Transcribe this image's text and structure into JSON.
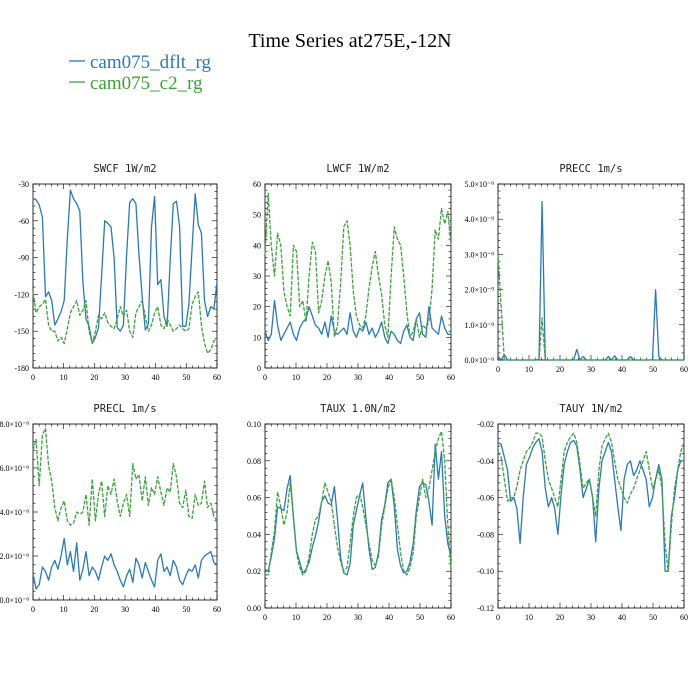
{
  "title": "Time Series at275E,-12N",
  "legend": [
    {
      "label": "cam075_dflt_rg",
      "color": "#2a7ab8"
    },
    {
      "label": "cam075_c2_rg",
      "color": "#3aa33a"
    }
  ],
  "chart_data": [
    {
      "type": "line",
      "title": "SWCF   1W/m2",
      "xlim": [
        0,
        60
      ],
      "ylim": [
        -180,
        -30
      ],
      "xticks": [
        0,
        10,
        20,
        30,
        40,
        50,
        60
      ],
      "yticks": [
        -180,
        -150,
        -120,
        -90,
        -60,
        -30
      ],
      "yticklabels": [
        "-180",
        "-150",
        "-120",
        "-90",
        "-60",
        "-30"
      ],
      "series": [
        {
          "color": "#2a7ab8",
          "values": [
            -42,
            -43,
            -47,
            -57,
            -122,
            -118,
            -125,
            -145,
            -140,
            -134,
            -125,
            -75,
            -35,
            -42,
            -46,
            -52,
            -110,
            -140,
            -146,
            -160,
            -155,
            -147,
            -105,
            -60,
            -62,
            -65,
            -90,
            -147,
            -150,
            -145,
            -88,
            -45,
            -42,
            -46,
            -88,
            -122,
            -149,
            -144,
            -65,
            -40,
            -112,
            -108,
            -138,
            -146,
            -92,
            -46,
            -44,
            -65,
            -146,
            -146,
            -128,
            -82,
            -38,
            -63,
            -70,
            -125,
            -138,
            -130,
            -132,
            -110
          ]
        },
        {
          "color": "#3aa33a",
          "values": [
            -118,
            -135,
            -130,
            -128,
            -124,
            -145,
            -150,
            -150,
            -158,
            -155,
            -160,
            -148,
            -135,
            -130,
            -125,
            -137,
            -133,
            -125,
            -150,
            -160,
            -150,
            -137,
            -140,
            -135,
            -143,
            -146,
            -148,
            -140,
            -130,
            -138,
            -133,
            -150,
            -155,
            -135,
            -130,
            -125,
            -138,
            -150,
            -145,
            -135,
            -130,
            -145,
            -148,
            -140,
            -145,
            -150,
            -148,
            -145,
            -148,
            -150,
            -148,
            -128,
            -122,
            -118,
            -145,
            -160,
            -168,
            -165,
            -158,
            -156
          ]
        }
      ]
    },
    {
      "type": "line",
      "title": "LWCF   1W/m2",
      "xlim": [
        0,
        60
      ],
      "ylim": [
        0,
        60
      ],
      "xticks": [
        0,
        10,
        20,
        30,
        40,
        50,
        60
      ],
      "yticks": [
        0,
        10,
        20,
        30,
        40,
        50,
        60
      ],
      "yticklabels": [
        "0",
        "10",
        "20",
        "30",
        "40",
        "50",
        "60"
      ],
      "series": [
        {
          "color": "#2a7ab8",
          "values": [
            12,
            9,
            11,
            22,
            14,
            9,
            11,
            13,
            15,
            11,
            9,
            13,
            15,
            16,
            20,
            17,
            14,
            13,
            11,
            15,
            10,
            17,
            12,
            11,
            12,
            13,
            11,
            18,
            12,
            10,
            13,
            12,
            15,
            11,
            13,
            10,
            12,
            15,
            10,
            8,
            12,
            11,
            9,
            8,
            12,
            14,
            10,
            9,
            16,
            18,
            11,
            10,
            20,
            13,
            12,
            11,
            17,
            13,
            11,
            11
          ]
        },
        {
          "color": "#3aa33a",
          "values": [
            37,
            57,
            40,
            30,
            44,
            40,
            25,
            20,
            17,
            40,
            38,
            20,
            22,
            15,
            30,
            41,
            38,
            18,
            22,
            30,
            35,
            28,
            10,
            14,
            28,
            46,
            48,
            40,
            25,
            17,
            14,
            13,
            17,
            26,
            33,
            38,
            30,
            24,
            14,
            10,
            30,
            46,
            42,
            40,
            30,
            18,
            10,
            12,
            16,
            10,
            14,
            13,
            15,
            26,
            45,
            42,
            52,
            47,
            51,
            40
          ]
        }
      ]
    },
    {
      "type": "line",
      "title": "PRECC   1m/s",
      "xlim": [
        0,
        60
      ],
      "ylim": [
        0,
        5e-09
      ],
      "xticks": [
        0,
        10,
        20,
        30,
        40,
        50,
        60
      ],
      "yticks": [
        0,
        1e-09,
        2e-09,
        3e-09,
        4e-09,
        5e-09
      ],
      "yticklabels": [
        "0.0×10⁻⁹",
        "1.0×10⁻⁹",
        "2.0×10⁻⁹",
        "3.0×10⁻⁹",
        "4.0×10⁻⁹",
        "5.0×10⁻⁹"
      ],
      "series": [
        {
          "color": "#2a7ab8",
          "values": [
            1e-10,
            0,
            1.5e-10,
            0,
            0,
            0,
            0,
            0,
            0,
            0,
            0,
            0,
            0,
            2e-11,
            4.5e-09,
            0,
            0,
            0,
            0,
            0,
            0,
            0,
            0,
            0,
            1e-11,
            3e-10,
            0,
            1e-10,
            0,
            0,
            0,
            0,
            0,
            0,
            0,
            1e-10,
            0,
            1.2e-10,
            0,
            0,
            0,
            0,
            1e-10,
            0,
            0,
            0,
            0,
            0,
            0,
            1e-11,
            2e-09,
            1e-10,
            0,
            0,
            0,
            0,
            0,
            0,
            0,
            0
          ]
        },
        {
          "color": "#3aa33a",
          "values": [
            3e-09,
            1.5e-09,
            0,
            0,
            0,
            0,
            0,
            0,
            0,
            0,
            0,
            0,
            0,
            0,
            1.2e-09,
            0,
            0,
            0,
            0,
            0,
            0,
            0,
            0,
            0,
            0,
            0,
            0,
            0,
            0,
            0,
            0,
            0,
            0,
            0,
            0,
            0,
            0,
            0,
            0,
            0,
            0,
            0,
            0,
            0,
            0,
            0,
            0,
            0,
            0,
            0,
            0,
            0,
            0,
            0,
            0,
            0,
            0,
            0,
            0,
            0
          ]
        }
      ]
    },
    {
      "type": "line",
      "title": "PRECL   1m/s",
      "xlim": [
        0,
        60
      ],
      "ylim": [
        0,
        8e-09
      ],
      "xticks": [
        0,
        10,
        20,
        30,
        40,
        50,
        60
      ],
      "yticks": [
        0,
        2e-09,
        4e-09,
        6e-09,
        8e-09
      ],
      "yticklabels": [
        "0.0×10⁻⁹",
        "2.0×10⁻⁹",
        "4.0×10⁻⁹",
        "6.0×10⁻⁹",
        "8.0×10⁻⁹"
      ],
      "series": [
        {
          "color": "#2a7ab8",
          "values": [
            1.2e-09,
            5e-10,
            7e-10,
            1.5e-09,
            1.3e-09,
            9e-10,
            1.5e-09,
            1.8e-09,
            1.4e-09,
            2e-09,
            2.8e-09,
            1.6e-09,
            2.2e-09,
            1.3e-09,
            2.6e-09,
            9e-10,
            1.4e-09,
            2.2e-09,
            1.1e-09,
            1.5e-09,
            1.3e-09,
            9e-10,
            1.5e-09,
            2e-09,
            1.8e-09,
            2.1e-09,
            1.6e-09,
            1.3e-09,
            9e-10,
            6e-10,
            1.1e-09,
            1.4e-09,
            8e-10,
            1.9e-09,
            1.6e-09,
            1e-09,
            1.7e-09,
            1.3e-09,
            9e-10,
            6e-10,
            1.8e-09,
            2.1e-09,
            1.3e-09,
            1.5e-09,
            1.1e-09,
            1.8e-09,
            1.5e-09,
            9e-10,
            7e-10,
            1.1e-09,
            1.4e-09,
            1.3e-09,
            1.6e-09,
            1e-09,
            1.8e-09,
            2e-09,
            2.1e-09,
            2.2e-09,
            1.7e-09,
            1.6e-09
          ]
        },
        {
          "color": "#3aa33a",
          "values": [
            6.8e-09,
            7.3e-09,
            5.2e-09,
            7.5e-09,
            7.8e-09,
            6.1e-09,
            5.4e-09,
            4.2e-09,
            3.6e-09,
            4.2e-09,
            4.5e-09,
            3.6e-09,
            3.4e-09,
            3.5e-09,
            4e-09,
            3.9e-09,
            4e-09,
            4.8e-09,
            3.4e-09,
            5.5e-09,
            3.6e-09,
            4.8e-09,
            5.4e-09,
            3.8e-09,
            5.2e-09,
            4.8e-09,
            5.5e-09,
            4.5e-09,
            3.8e-09,
            4.4e-09,
            4.8e-09,
            3.8e-09,
            6.2e-09,
            5.5e-09,
            5.7e-09,
            4.5e-09,
            5.6e-09,
            4.3e-09,
            5.1e-09,
            4.8e-09,
            5.6e-09,
            4.9e-09,
            4.3e-09,
            5.1e-09,
            4.9e-09,
            6.2e-09,
            5.6e-09,
            4.4e-09,
            4.2e-09,
            5e-09,
            3.8e-09,
            3.7e-09,
            4.8e-09,
            4.3e-09,
            4.4e-09,
            5.4e-09,
            4.2e-09,
            4.4e-09,
            3.8e-09,
            3.6e-09
          ]
        }
      ]
    },
    {
      "type": "line",
      "title": "TAUX   1.0N/m2",
      "xlim": [
        0,
        60
      ],
      "ylim": [
        0,
        0.1
      ],
      "xticks": [
        0,
        10,
        20,
        30,
        40,
        50,
        60
      ],
      "yticks": [
        0,
        0.02,
        0.04,
        0.06,
        0.08,
        0.1
      ],
      "yticklabels": [
        "0.00",
        "0.02",
        "0.04",
        "0.06",
        "0.08",
        "0.10"
      ],
      "series": [
        {
          "color": "#2a7ab8",
          "values": [
            0.021,
            0.02,
            0.028,
            0.038,
            0.055,
            0.054,
            0.053,
            0.065,
            0.072,
            0.049,
            0.031,
            0.025,
            0.019,
            0.021,
            0.025,
            0.033,
            0.039,
            0.047,
            0.058,
            0.061,
            0.057,
            0.056,
            0.066,
            0.048,
            0.027,
            0.019,
            0.018,
            0.024,
            0.045,
            0.053,
            0.061,
            0.068,
            0.049,
            0.032,
            0.021,
            0.022,
            0.03,
            0.048,
            0.056,
            0.068,
            0.07,
            0.055,
            0.032,
            0.023,
            0.019,
            0.02,
            0.025,
            0.035,
            0.053,
            0.066,
            0.068,
            0.067,
            0.058,
            0.045,
            0.089,
            0.07,
            0.085,
            0.05,
            0.035,
            0.028
          ]
        },
        {
          "color": "#3aa33a",
          "values": [
            0.018,
            0.018,
            0.03,
            0.042,
            0.063,
            0.055,
            0.045,
            0.052,
            0.068,
            0.05,
            0.03,
            0.022,
            0.018,
            0.02,
            0.028,
            0.04,
            0.048,
            0.05,
            0.058,
            0.068,
            0.063,
            0.058,
            0.045,
            0.033,
            0.025,
            0.02,
            0.022,
            0.035,
            0.05,
            0.06,
            0.062,
            0.055,
            0.045,
            0.035,
            0.026,
            0.023,
            0.028,
            0.045,
            0.055,
            0.065,
            0.07,
            0.06,
            0.045,
            0.03,
            0.02,
            0.018,
            0.022,
            0.03,
            0.05,
            0.06,
            0.07,
            0.06,
            0.065,
            0.075,
            0.085,
            0.092,
            0.096,
            0.08,
            0.045,
            0.021
          ]
        }
      ]
    },
    {
      "type": "line",
      "title": "TAUY   1N/m2",
      "xlim": [
        0,
        60
      ],
      "ylim": [
        -0.12,
        -0.02
      ],
      "xticks": [
        0,
        10,
        20,
        30,
        40,
        50,
        60
      ],
      "yticks": [
        -0.12,
        -0.1,
        -0.08,
        -0.06,
        -0.04,
        -0.02
      ],
      "yticklabels": [
        "-0.12",
        "-0.10",
        "-0.08",
        "-0.06",
        "-0.04",
        "-0.02"
      ],
      "series": [
        {
          "color": "#2a7ab8",
          "values": [
            -0.03,
            -0.031,
            -0.038,
            -0.045,
            -0.062,
            -0.06,
            -0.066,
            -0.085,
            -0.06,
            -0.042,
            -0.038,
            -0.033,
            -0.03,
            -0.028,
            -0.035,
            -0.055,
            -0.065,
            -0.06,
            -0.066,
            -0.08,
            -0.058,
            -0.042,
            -0.035,
            -0.03,
            -0.029,
            -0.032,
            -0.045,
            -0.06,
            -0.055,
            -0.05,
            -0.06,
            -0.084,
            -0.055,
            -0.04,
            -0.035,
            -0.03,
            -0.035,
            -0.05,
            -0.065,
            -0.078,
            -0.05,
            -0.042,
            -0.04,
            -0.048,
            -0.045,
            -0.04,
            -0.045,
            -0.05,
            -0.065,
            -0.06,
            -0.05,
            -0.042,
            -0.05,
            -0.1,
            -0.1,
            -0.07,
            -0.06,
            -0.045,
            -0.04,
            -0.04
          ]
        },
        {
          "color": "#3aa33a",
          "values": [
            -0.035,
            -0.038,
            -0.05,
            -0.062,
            -0.06,
            -0.06,
            -0.054,
            -0.045,
            -0.04,
            -0.035,
            -0.033,
            -0.03,
            -0.025,
            -0.025,
            -0.027,
            -0.04,
            -0.05,
            -0.055,
            -0.06,
            -0.065,
            -0.05,
            -0.035,
            -0.03,
            -0.027,
            -0.025,
            -0.03,
            -0.042,
            -0.055,
            -0.052,
            -0.05,
            -0.06,
            -0.07,
            -0.045,
            -0.032,
            -0.028,
            -0.025,
            -0.03,
            -0.04,
            -0.05,
            -0.055,
            -0.06,
            -0.063,
            -0.058,
            -0.055,
            -0.05,
            -0.045,
            -0.04,
            -0.035,
            -0.045,
            -0.055,
            -0.05,
            -0.045,
            -0.055,
            -0.085,
            -0.1,
            -0.075,
            -0.055,
            -0.045,
            -0.035,
            -0.03
          ]
        }
      ]
    }
  ]
}
